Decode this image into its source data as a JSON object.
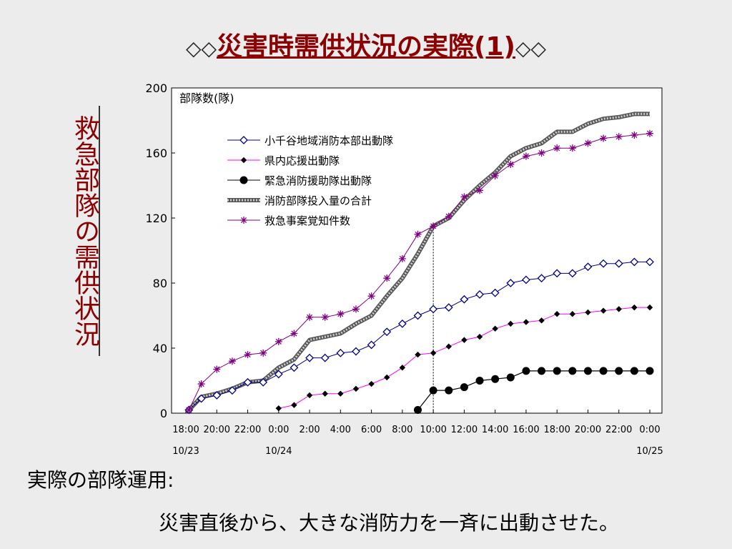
{
  "title": {
    "deco_left": "◇◇",
    "main": "災害時需供状況の実際(1)",
    "deco_right": "◇◇"
  },
  "side_label": "救急部隊の需供状況",
  "note": {
    "label": "実際の部隊運用:",
    "text": "災害直後から、大きな消防力を一斉に出動させた。"
  },
  "chart_data": {
    "type": "line",
    "ylabel": "部隊数(隊)",
    "ylim": [
      0,
      200
    ],
    "yticks": [
      0,
      40,
      80,
      120,
      160,
      200
    ],
    "xlim": [
      18,
      48
    ],
    "xticks": [
      {
        "t": 18,
        "label": "18:00"
      },
      {
        "t": 20,
        "label": "20:00"
      },
      {
        "t": 22,
        "label": "22:00"
      },
      {
        "t": 24,
        "label": "0:00"
      },
      {
        "t": 26,
        "label": "2:00"
      },
      {
        "t": 28,
        "label": "4:00"
      },
      {
        "t": 30,
        "label": "6:00"
      },
      {
        "t": 32,
        "label": "8:00"
      },
      {
        "t": 34,
        "label": "10:00"
      },
      {
        "t": 36,
        "label": "12:00"
      },
      {
        "t": 38,
        "label": "14:00"
      },
      {
        "t": 40,
        "label": "16:00"
      },
      {
        "t": 42,
        "label": "18:00"
      },
      {
        "t": 44,
        "label": "20:00"
      },
      {
        "t": 46,
        "label": "22:00"
      },
      {
        "t": 48,
        "label": "0:00"
      }
    ],
    "date_labels": [
      {
        "t": 18,
        "label": "10/23"
      },
      {
        "t": 24,
        "label": "10/24"
      },
      {
        "t": 48,
        "label": "10/25"
      }
    ],
    "vline_at": 34,
    "grid": false,
    "legend_position": "top-left",
    "series": [
      {
        "name": "小千谷地域消防本部出動隊",
        "style": "diamond-open",
        "color": "#000080",
        "points": [
          [
            18.2,
            2
          ],
          [
            19,
            9
          ],
          [
            20,
            11
          ],
          [
            21,
            14
          ],
          [
            22,
            19
          ],
          [
            23,
            19
          ],
          [
            24,
            24
          ],
          [
            25,
            28
          ],
          [
            26,
            34
          ],
          [
            27,
            34
          ],
          [
            28,
            37
          ],
          [
            29,
            38
          ],
          [
            30,
            42
          ],
          [
            31,
            50
          ],
          [
            32,
            55
          ],
          [
            33,
            60
          ],
          [
            34,
            64
          ],
          [
            35,
            65
          ],
          [
            36,
            70
          ],
          [
            37,
            73
          ],
          [
            38,
            74
          ],
          [
            39,
            80
          ],
          [
            40,
            82
          ],
          [
            41,
            83
          ],
          [
            42,
            86
          ],
          [
            43,
            86
          ],
          [
            44,
            90
          ],
          [
            45,
            92
          ],
          [
            46,
            92
          ],
          [
            47,
            93
          ],
          [
            48,
            93
          ]
        ]
      },
      {
        "name": "県内応援出動隊",
        "style": "small-diamond",
        "color": "#ff00ff",
        "points": [
          [
            24,
            3
          ],
          [
            25,
            5
          ],
          [
            26,
            11
          ],
          [
            27,
            12
          ],
          [
            28,
            12
          ],
          [
            29,
            15
          ],
          [
            30,
            18
          ],
          [
            31,
            22
          ],
          [
            32,
            28
          ],
          [
            33,
            36
          ],
          [
            34,
            37
          ],
          [
            35,
            41
          ],
          [
            36,
            45
          ],
          [
            37,
            47
          ],
          [
            38,
            52
          ],
          [
            39,
            55
          ],
          [
            40,
            56
          ],
          [
            41,
            57
          ],
          [
            42,
            61
          ],
          [
            43,
            61
          ],
          [
            44,
            62
          ],
          [
            45,
            63
          ],
          [
            46,
            64
          ],
          [
            47,
            65
          ],
          [
            48,
            65
          ]
        ]
      },
      {
        "name": "緊急消防援助隊出動隊",
        "style": "big-dot",
        "color": "#000000",
        "points": [
          [
            33,
            2
          ],
          [
            34,
            14
          ],
          [
            35,
            14
          ],
          [
            36,
            16
          ],
          [
            37,
            20
          ],
          [
            38,
            21
          ],
          [
            39,
            22
          ],
          [
            40,
            26
          ],
          [
            41,
            26
          ],
          [
            42,
            26
          ],
          [
            43,
            26
          ],
          [
            44,
            26
          ],
          [
            45,
            26
          ],
          [
            46,
            26
          ],
          [
            47,
            26
          ],
          [
            48,
            26
          ]
        ]
      },
      {
        "name": "消防部隊投入量の合計",
        "style": "thick-hatched",
        "color": "#777777",
        "points": [
          [
            18.2,
            2
          ],
          [
            19,
            10
          ],
          [
            20,
            12
          ],
          [
            21,
            15
          ],
          [
            22,
            19
          ],
          [
            23,
            20
          ],
          [
            24,
            28
          ],
          [
            25,
            33
          ],
          [
            26,
            45
          ],
          [
            27,
            47
          ],
          [
            28,
            49
          ],
          [
            29,
            55
          ],
          [
            30,
            60
          ],
          [
            31,
            72
          ],
          [
            32,
            83
          ],
          [
            33,
            98
          ],
          [
            34,
            115
          ],
          [
            35,
            120
          ],
          [
            36,
            131
          ],
          [
            37,
            140
          ],
          [
            38,
            148
          ],
          [
            39,
            158
          ],
          [
            40,
            163
          ],
          [
            41,
            166
          ],
          [
            42,
            173
          ],
          [
            43,
            173
          ],
          [
            44,
            178
          ],
          [
            45,
            181
          ],
          [
            46,
            182
          ],
          [
            47,
            184
          ],
          [
            48,
            184
          ]
        ]
      },
      {
        "name": "救急事案覚知件数",
        "style": "star",
        "color": "#800080",
        "points": [
          [
            18.2,
            2
          ],
          [
            19,
            18
          ],
          [
            20,
            27
          ],
          [
            21,
            32
          ],
          [
            22,
            36
          ],
          [
            23,
            37
          ],
          [
            24,
            44
          ],
          [
            25,
            49
          ],
          [
            26,
            59
          ],
          [
            27,
            59
          ],
          [
            28,
            61
          ],
          [
            29,
            64
          ],
          [
            30,
            72
          ],
          [
            31,
            83
          ],
          [
            32,
            95
          ],
          [
            33,
            110
          ],
          [
            34,
            115
          ],
          [
            35,
            121
          ],
          [
            36,
            133
          ],
          [
            37,
            137
          ],
          [
            38,
            146
          ],
          [
            39,
            153
          ],
          [
            40,
            158
          ],
          [
            41,
            160
          ],
          [
            42,
            163
          ],
          [
            43,
            163
          ],
          [
            44,
            166
          ],
          [
            45,
            169
          ],
          [
            46,
            170
          ],
          [
            47,
            171
          ],
          [
            48,
            172
          ]
        ]
      }
    ]
  }
}
